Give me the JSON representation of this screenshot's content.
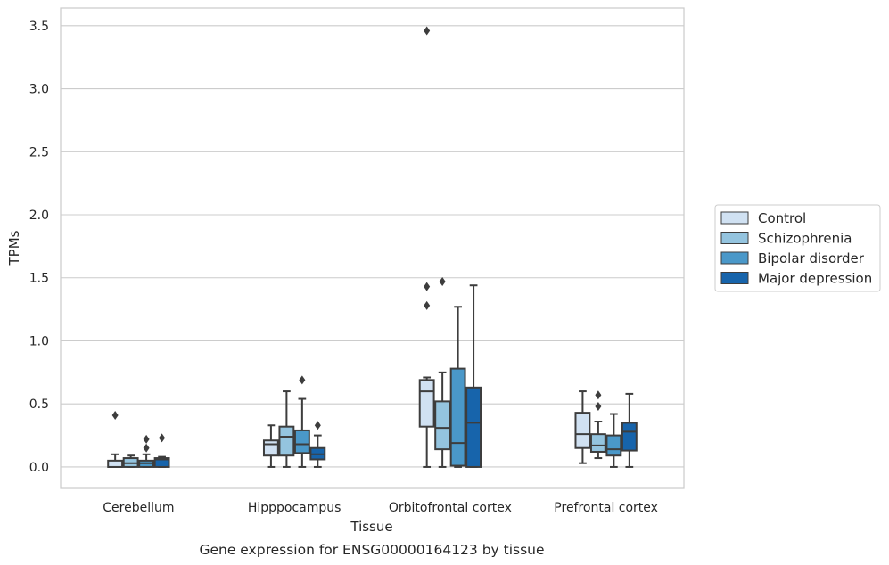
{
  "chart_data": {
    "type": "boxplot",
    "title": "",
    "caption": "Gene expression for ENSG00000164123 by tissue",
    "xlabel": "Tissue",
    "ylabel": "TPMs",
    "ylim": [
      -0.17,
      3.64
    ],
    "yticks": [
      0.0,
      0.5,
      1.0,
      1.5,
      2.0,
      2.5,
      3.0,
      3.5
    ],
    "ytick_labels": [
      "0.0",
      "0.5",
      "1.0",
      "1.5",
      "2.0",
      "2.5",
      "3.0",
      "3.5"
    ],
    "grid": "horizontal",
    "legend_position": "right",
    "categories": [
      "Cerebellum",
      "Hipppocampus",
      "Orbitofrontal cortex",
      "Prefrontal cortex"
    ],
    "series": [
      {
        "name": "Control",
        "color": "#d0e1f2",
        "boxes": [
          {
            "whisker_low": 0.0,
            "q1": 0.0,
            "median": 0.0,
            "q3": 0.05,
            "whisker_high": 0.1,
            "outliers": [
              0.41
            ]
          },
          {
            "whisker_low": 0.0,
            "q1": 0.09,
            "median": 0.18,
            "q3": 0.21,
            "whisker_high": 0.33,
            "outliers": []
          },
          {
            "whisker_low": 0.0,
            "q1": 0.32,
            "median": 0.6,
            "q3": 0.69,
            "whisker_high": 0.71,
            "outliers": [
              1.28,
              1.43,
              3.46
            ]
          },
          {
            "whisker_low": 0.03,
            "q1": 0.15,
            "median": 0.26,
            "q3": 0.43,
            "whisker_high": 0.6,
            "outliers": []
          }
        ]
      },
      {
        "name": "Schizophrenia",
        "color": "#94c4df",
        "boxes": [
          {
            "whisker_low": 0.0,
            "q1": 0.0,
            "median": 0.03,
            "q3": 0.07,
            "whisker_high": 0.09,
            "outliers": []
          },
          {
            "whisker_low": 0.0,
            "q1": 0.09,
            "median": 0.24,
            "q3": 0.32,
            "whisker_high": 0.6,
            "outliers": []
          },
          {
            "whisker_low": 0.0,
            "q1": 0.14,
            "median": 0.31,
            "q3": 0.52,
            "whisker_high": 0.75,
            "outliers": [
              1.47
            ]
          },
          {
            "whisker_low": 0.07,
            "q1": 0.12,
            "median": 0.17,
            "q3": 0.26,
            "whisker_high": 0.36,
            "outliers": [
              0.48,
              0.57
            ]
          }
        ]
      },
      {
        "name": "Bipolar disorder",
        "color": "#4a98c9",
        "boxes": [
          {
            "whisker_low": 0.0,
            "q1": 0.0,
            "median": 0.03,
            "q3": 0.05,
            "whisker_high": 0.1,
            "outliers": [
              0.15,
              0.22
            ]
          },
          {
            "whisker_low": 0.0,
            "q1": 0.11,
            "median": 0.18,
            "q3": 0.29,
            "whisker_high": 0.54,
            "outliers": [
              0.69
            ]
          },
          {
            "whisker_low": 0.0,
            "q1": 0.01,
            "median": 0.19,
            "q3": 0.78,
            "whisker_high": 1.27,
            "outliers": []
          },
          {
            "whisker_low": 0.0,
            "q1": 0.09,
            "median": 0.14,
            "q3": 0.25,
            "whisker_high": 0.42,
            "outliers": []
          }
        ]
      },
      {
        "name": "Major depression",
        "color": "#1764ab",
        "boxes": [
          {
            "whisker_low": 0.0,
            "q1": 0.0,
            "median": 0.06,
            "q3": 0.07,
            "whisker_high": 0.08,
            "outliers": [
              0.23
            ]
          },
          {
            "whisker_low": 0.0,
            "q1": 0.06,
            "median": 0.1,
            "q3": 0.15,
            "whisker_high": 0.25,
            "outliers": [
              0.33
            ]
          },
          {
            "whisker_low": 0.0,
            "q1": 0.0,
            "median": 0.35,
            "q3": 0.63,
            "whisker_high": 1.44,
            "outliers": []
          },
          {
            "whisker_low": 0.0,
            "q1": 0.13,
            "median": 0.28,
            "q3": 0.35,
            "whisker_high": 0.58,
            "outliers": []
          }
        ]
      }
    ]
  }
}
